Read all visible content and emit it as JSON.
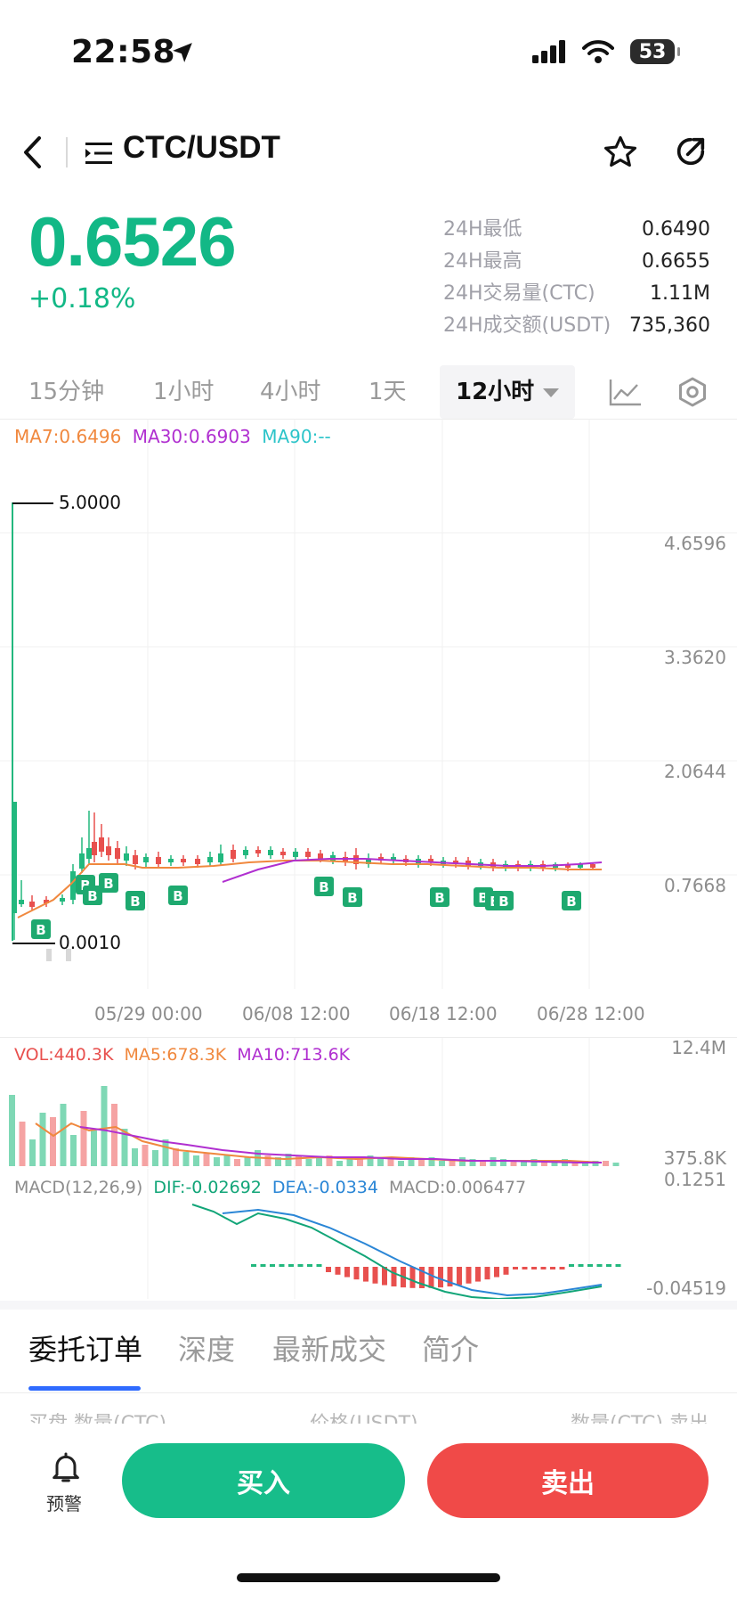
{
  "status_bar": {
    "time": "22:58",
    "battery": "53",
    "icons": [
      "location-arrow-icon",
      "cellular-signal-icon",
      "wifi-icon",
      "battery-icon"
    ]
  },
  "header": {
    "pair": "CTC/USDT",
    "icons": [
      "back-chevron-icon",
      "menu-list-icon",
      "star-icon",
      "share-icon"
    ]
  },
  "price": {
    "last": "0.6526",
    "change": "+0.18%",
    "color_up": "#12b886"
  },
  "stats": [
    {
      "label": "24H最低",
      "value": "0.6490"
    },
    {
      "label": "24H最高",
      "value": "0.6655"
    },
    {
      "label": "24H交易量(CTC)",
      "value": "1.11M"
    },
    {
      "label": "24H成交额(USDT)",
      "value": "735,360"
    }
  ],
  "timeframes": {
    "items": [
      "15分钟",
      "1小时",
      "4小时",
      "1天"
    ],
    "active": "12小时",
    "icons": [
      "line-chart-icon",
      "settings-hex-icon"
    ]
  },
  "main_legend": {
    "ma7": "MA7:0.6496",
    "ma30": "MA30:0.6903",
    "ma90": "MA90:--",
    "ma7_color": "#f0883e",
    "ma30_color": "#b02fd0",
    "ma90_color": "#2cc4c9"
  },
  "price_axis": [
    "4.6596",
    "3.3620",
    "2.0644",
    "0.7668"
  ],
  "price_markers": {
    "high": "5.0000",
    "low": "0.0010"
  },
  "date_axis": [
    "05/29 00:00",
    "06/08 12:00",
    "06/18 12:00",
    "06/28 12:00"
  ],
  "volume": {
    "vol": "VOL:440.3K",
    "ma5": "MA5:678.3K",
    "ma10": "MA10:713.6K",
    "axis_top": "12.4M",
    "axis_bottom": "375.8K"
  },
  "macd": {
    "title": "MACD(12,26,9)",
    "dif": "DIF:-0.02692",
    "dea": "DEA:-0.0334",
    "macd": "MACD:0.006477",
    "axis_top": "0.1251",
    "axis_bottom": "-0.04519"
  },
  "chart_data": {
    "type": "candlestick",
    "title": "",
    "xlabel": "",
    "ylabel": "",
    "x_ticks": [
      "05/29 00:00",
      "06/08 12:00",
      "06/18 12:00",
      "06/28 12:00"
    ],
    "y_ticks": [
      4.6596,
      3.362,
      2.0644,
      0.7668
    ],
    "ylim": [
      0.001,
      5.0
    ],
    "series": [
      {
        "name": "MA7",
        "value": 0.6496
      },
      {
        "name": "MA30",
        "value": 0.6903
      },
      {
        "name": "MA90",
        "value": null
      }
    ],
    "buy_markers": "B",
    "grid": true
  },
  "bottom_tabs": {
    "items": [
      "委托订单",
      "深度",
      "最新成交",
      "简介"
    ],
    "active": "委托订单"
  },
  "order_list_header": {
    "left": "买盘 数量(CTC)",
    "center": "价格(USDT)",
    "right": "数量(CTC) 卖出"
  },
  "actions": {
    "alert": "预警",
    "buy": "买入",
    "sell": "卖出"
  }
}
